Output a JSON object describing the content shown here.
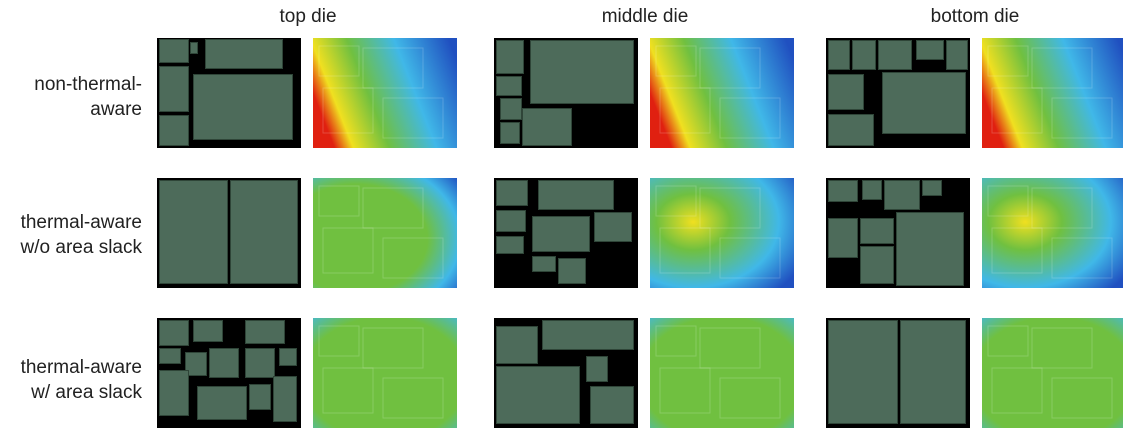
{
  "columns": [
    "top die",
    "middle die",
    "bottom die"
  ],
  "rows": [
    {
      "lines": [
        "non-thermal-",
        "aware"
      ]
    },
    {
      "lines": [
        "thermal-aware",
        "w/o area slack"
      ]
    },
    {
      "lines": [
        "thermal-aware",
        "w/ area slack"
      ]
    }
  ],
  "colors": {
    "block": "#4d6b5a",
    "background": "#000000",
    "hot": "#e02010",
    "warm": "#f0e020",
    "mild": "#70c040",
    "cool": "#40b8e8",
    "cold": "#2050c0"
  },
  "heatmaps": [
    {
      "id": "r0c0",
      "style": "hot-left"
    },
    {
      "id": "r0c1",
      "style": "hot-left"
    },
    {
      "id": "r0c2",
      "style": "hot-left"
    },
    {
      "id": "r1c0",
      "style": "cool-corner"
    },
    {
      "id": "r1c1",
      "style": "warm-center"
    },
    {
      "id": "r1c2",
      "style": "warm-center"
    },
    {
      "id": "r2c0",
      "style": "even"
    },
    {
      "id": "r2c1",
      "style": "even"
    },
    {
      "id": "r2c2",
      "style": "even"
    }
  ]
}
